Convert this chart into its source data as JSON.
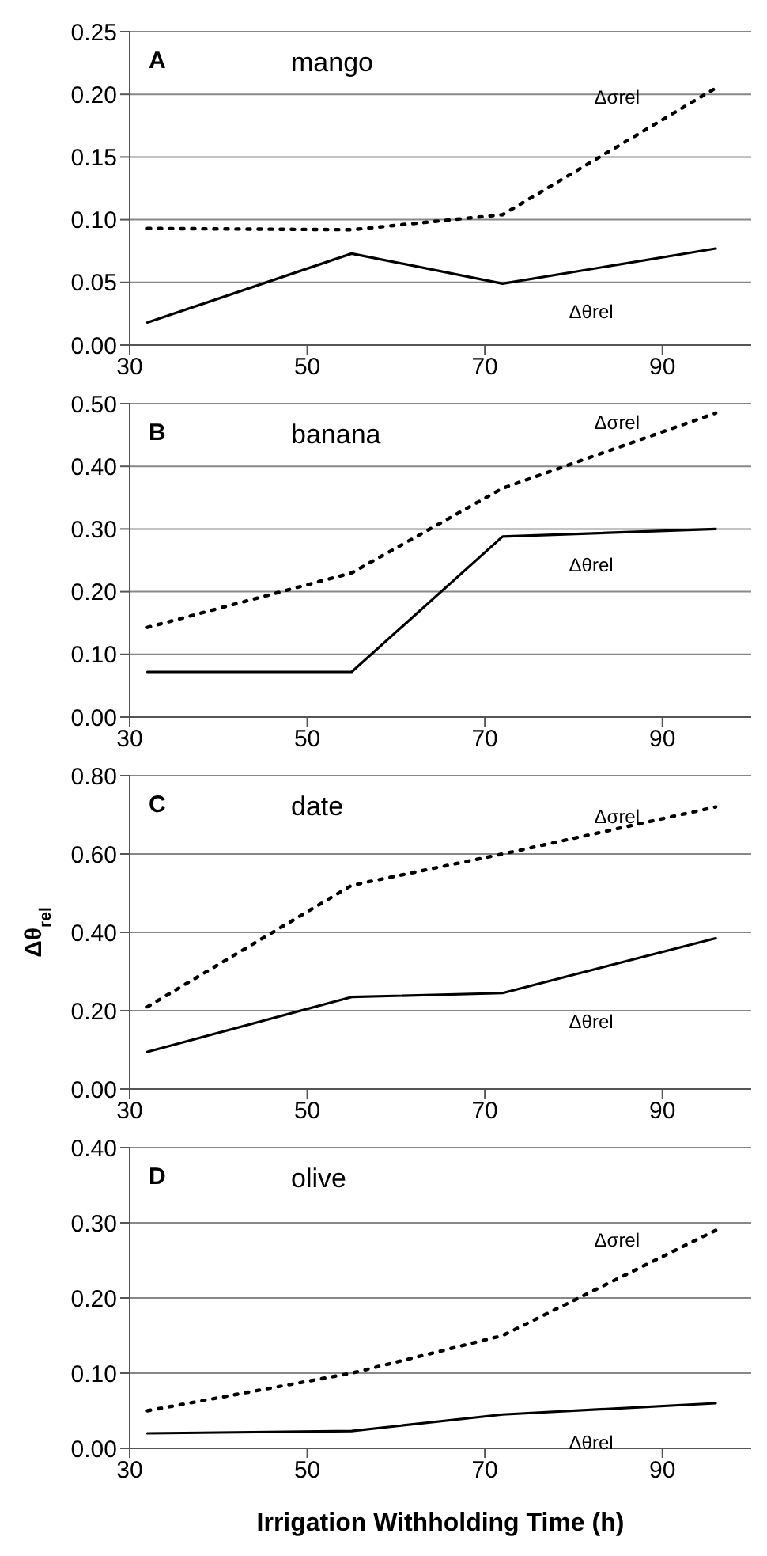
{
  "chart_data": [
    {
      "type": "line",
      "annotations": [
        "A",
        "mango"
      ],
      "x": [
        32,
        55,
        72,
        96
      ],
      "xlim": [
        30,
        100
      ],
      "xticks": [
        30,
        50,
        70,
        90
      ],
      "ylim": [
        0,
        0.25
      ],
      "grid": "y",
      "yticks": [
        {
          "value": 0,
          "label": "0.00"
        },
        {
          "value": 0.05,
          "label": "0.05"
        },
        {
          "value": 0.1,
          "label": "0.10"
        },
        {
          "value": 0.15,
          "label": "0.15"
        },
        {
          "value": 0.2,
          "label": "0.20"
        },
        {
          "value": 0.25,
          "label": "0.25"
        }
      ],
      "series": [
        {
          "name": "Δσrel",
          "color": "#000000",
          "line_style": "dotted",
          "values": [
            0.093,
            0.092,
            0.104,
            0.205
          ]
        },
        {
          "name": "Δθrel",
          "color": "#000000",
          "line_style": "solid",
          "values": [
            0.018,
            0.073,
            0.049,
            0.077
          ]
        }
      ]
    },
    {
      "type": "line",
      "annotations": [
        "B",
        "banana"
      ],
      "x": [
        32,
        55,
        72,
        96
      ],
      "xlim": [
        30,
        100
      ],
      "xticks": [
        30,
        50,
        70,
        90
      ],
      "ylim": [
        0,
        0.5
      ],
      "grid": "y",
      "yticks": [
        {
          "value": 0,
          "label": "0.00"
        },
        {
          "value": 0.1,
          "label": "0.10"
        },
        {
          "value": 0.2,
          "label": "0.20"
        },
        {
          "value": 0.3,
          "label": "0.30"
        },
        {
          "value": 0.4,
          "label": "0.40"
        },
        {
          "value": 0.5,
          "label": "0.50"
        }
      ],
      "series": [
        {
          "name": "Δσrel",
          "color": "#000000",
          "line_style": "dotted",
          "values": [
            0.143,
            0.23,
            0.365,
            0.485
          ]
        },
        {
          "name": "Δθrel",
          "color": "#000000",
          "line_style": "solid",
          "values": [
            0.072,
            0.072,
            0.288,
            0.3
          ]
        }
      ]
    },
    {
      "type": "line",
      "annotations": [
        "C",
        "date"
      ],
      "ylabel": "Δθ$_{rel}$",
      "x": [
        32,
        55,
        72,
        96
      ],
      "xlim": [
        30,
        100
      ],
      "xticks": [
        30,
        50,
        70,
        90
      ],
      "ylim": [
        0,
        0.8
      ],
      "grid": "y",
      "yticks": [
        {
          "value": 0,
          "label": "0.00"
        },
        {
          "value": 0.2,
          "label": "0.20"
        },
        {
          "value": 0.4,
          "label": "0.40"
        },
        {
          "value": 0.6,
          "label": "0.60"
        },
        {
          "value": 0.8,
          "label": "0.80"
        }
      ],
      "series": [
        {
          "name": "Δσrel",
          "color": "#000000",
          "line_style": "dotted",
          "values": [
            0.21,
            0.52,
            0.6,
            0.72
          ]
        },
        {
          "name": "Δθrel",
          "color": "#000000",
          "line_style": "solid",
          "values": [
            0.095,
            0.235,
            0.245,
            0.385
          ]
        }
      ]
    },
    {
      "type": "line",
      "annotations": [
        "D",
        "olive"
      ],
      "xlabel": "Irrigation Withholding Time (h)",
      "x": [
        32,
        55,
        72,
        96
      ],
      "xlim": [
        30,
        100
      ],
      "xticks": [
        30,
        50,
        70,
        90
      ],
      "ylim": [
        0,
        0.4
      ],
      "grid": "y",
      "yticks": [
        {
          "value": 0,
          "label": "0.00"
        },
        {
          "value": 0.1,
          "label": "0.10"
        },
        {
          "value": 0.2,
          "label": "0.20"
        },
        {
          "value": 0.3,
          "label": "0.30"
        },
        {
          "value": 0.4,
          "label": "0.40"
        }
      ],
      "series": [
        {
          "name": "Δσrel",
          "color": "#000000",
          "line_style": "dotted",
          "values": [
            0.05,
            0.1,
            0.15,
            0.29
          ]
        },
        {
          "name": "Δθrel",
          "color": "#000000",
          "line_style": "solid",
          "values": [
            0.02,
            0.023,
            0.045,
            0.06
          ]
        }
      ]
    }
  ]
}
